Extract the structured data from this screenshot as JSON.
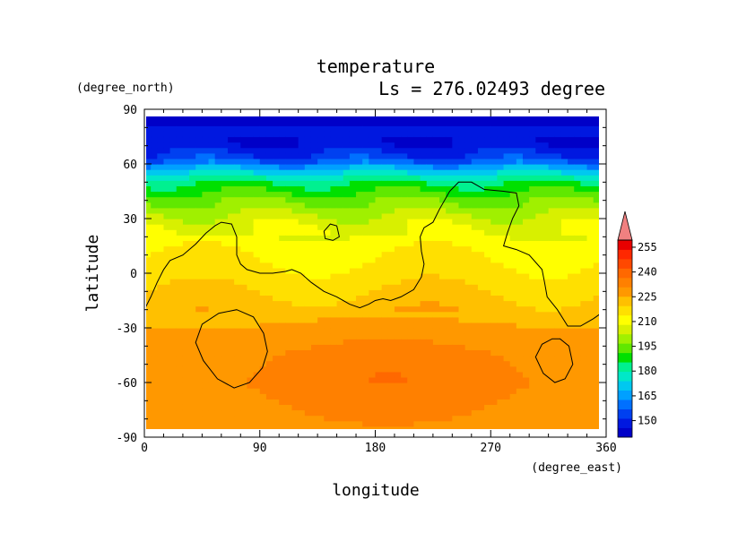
{
  "chart_data": {
    "type": "heatmap",
    "title": "temperature",
    "subtitle": "Ls = 276.02493 degree",
    "xlabel": "longitude",
    "ylabel": "latitude",
    "xunit": "(degree_east)",
    "yunit": "(degree_north)",
    "xlim": [
      0,
      360
    ],
    "ylim": [
      -90,
      90
    ],
    "xticks": [
      0,
      90,
      180,
      270,
      360
    ],
    "yticks": [
      90,
      60,
      30,
      0,
      -30,
      -60,
      -90
    ],
    "data_extent": {
      "lon": [
        0,
        355
      ],
      "lat": [
        -87,
        87
      ]
    },
    "colorbar": {
      "ticks": [
        150,
        165,
        180,
        195,
        210,
        225,
        240,
        255
      ],
      "range": [
        140,
        265
      ],
      "extend": "max",
      "colors": [
        "#0000c8",
        "#0018e0",
        "#0040f0",
        "#0070ff",
        "#00a0ff",
        "#00c8f0",
        "#00e8c8",
        "#00f090",
        "#00e000",
        "#60e800",
        "#a0f000",
        "#d8f000",
        "#ffff00",
        "#ffe000",
        "#ffc000",
        "#ff9800",
        "#ff8000",
        "#ff6800",
        "#ff4800",
        "#ff2800",
        "#e80000",
        "#f08080"
      ]
    },
    "field_profile": {
      "lat": [
        -87,
        -75,
        -60,
        -45,
        -30,
        -15,
        0,
        15,
        30,
        40,
        50,
        57,
        63,
        70,
        87
      ],
      "temperature": [
        228,
        229,
        230,
        229,
        225,
        221,
        216,
        212,
        205,
        196,
        185,
        170,
        155,
        147,
        145
      ],
      "warm_core": {
        "lon_center": 190,
        "lat_center": -55,
        "peak": 236
      }
    },
    "contours": [
      {
        "points": [
          [
            0,
            -20
          ],
          [
            5,
            -13
          ],
          [
            10,
            -5
          ],
          [
            15,
            2
          ],
          [
            20,
            7
          ],
          [
            30,
            10
          ],
          [
            40,
            16
          ],
          [
            48,
            22
          ],
          [
            55,
            26
          ],
          [
            60,
            28
          ],
          [
            68,
            27
          ],
          [
            72,
            20
          ],
          [
            72,
            10
          ],
          [
            75,
            5
          ],
          [
            80,
            2
          ],
          [
            90,
            0
          ],
          [
            100,
            0
          ],
          [
            110,
            1
          ],
          [
            115,
            2
          ],
          [
            122,
            0
          ],
          [
            130,
            -5
          ],
          [
            140,
            -10
          ],
          [
            150,
            -13
          ],
          [
            160,
            -17
          ],
          [
            168,
            -19
          ],
          [
            175,
            -17
          ],
          [
            180,
            -15
          ],
          [
            186,
            -14
          ],
          [
            192,
            -15
          ],
          [
            200,
            -13
          ],
          [
            210,
            -9
          ],
          [
            216,
            -2
          ],
          [
            218,
            5
          ],
          [
            216,
            12
          ],
          [
            215,
            20
          ],
          [
            218,
            25
          ],
          [
            225,
            28
          ],
          [
            230,
            35
          ],
          [
            238,
            45
          ],
          [
            245,
            50
          ],
          [
            255,
            50
          ],
          [
            265,
            46
          ],
          [
            280,
            45
          ],
          [
            290,
            44
          ],
          [
            292,
            37
          ],
          [
            287,
            30
          ],
          [
            283,
            22
          ],
          [
            280,
            15
          ],
          [
            290,
            13
          ],
          [
            300,
            10
          ],
          [
            310,
            2
          ],
          [
            312,
            -5
          ],
          [
            314,
            -13
          ],
          [
            322,
            -20
          ],
          [
            330,
            -29
          ],
          [
            340,
            -29
          ],
          [
            350,
            -25
          ],
          [
            360,
            -20
          ]
        ],
        "closed": false
      },
      {
        "points": [
          [
            140,
            23
          ],
          [
            145,
            27
          ],
          [
            150,
            26
          ],
          [
            152,
            20
          ],
          [
            147,
            18
          ],
          [
            141,
            19
          ]
        ],
        "closed": true
      },
      {
        "points": [
          [
            72,
            -20
          ],
          [
            85,
            -24
          ],
          [
            93,
            -33
          ],
          [
            96,
            -43
          ],
          [
            92,
            -52
          ],
          [
            82,
            -60
          ],
          [
            70,
            -63
          ],
          [
            57,
            -58
          ],
          [
            46,
            -48
          ],
          [
            40,
            -38
          ],
          [
            45,
            -28
          ],
          [
            58,
            -22
          ]
        ],
        "closed": true
      },
      {
        "points": [
          [
            324,
            -36
          ],
          [
            331,
            -40
          ],
          [
            334,
            -50
          ],
          [
            328,
            -58
          ],
          [
            320,
            -60
          ],
          [
            311,
            -55
          ],
          [
            305,
            -46
          ],
          [
            310,
            -39
          ],
          [
            318,
            -36
          ]
        ],
        "closed": true
      }
    ]
  }
}
